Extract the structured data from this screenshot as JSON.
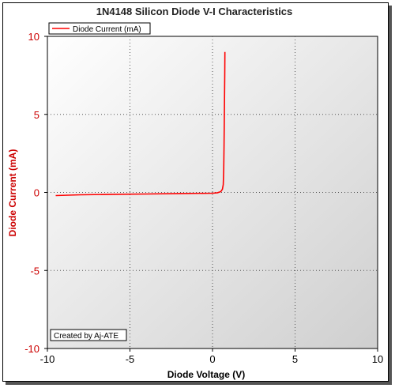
{
  "chart_data": {
    "type": "line",
    "title": "1N4148 Silicon Diode V-I Characteristics",
    "xlabel": "Diode Voltage (V)",
    "ylabel": "Diode Current (mA)",
    "xlim": [
      -10,
      10
    ],
    "ylim": [
      -10,
      10
    ],
    "xticks": [
      "-10",
      "-5",
      "0",
      "5",
      "10"
    ],
    "yticks": [
      "10",
      "5",
      "0",
      "-5",
      "-10"
    ],
    "grid": true,
    "legend_position": "top-left",
    "annotation": "Created by Aj-ATE",
    "series": [
      {
        "name": "Diode Current (mA)",
        "color": "#ff0000",
        "x": [
          -9.5,
          -8,
          -6,
          -4,
          -2,
          0,
          0.3,
          0.5,
          0.6,
          0.65,
          0.68,
          0.7,
          0.72,
          0.74,
          0.75
        ],
        "y": [
          -0.2,
          -0.15,
          -0.12,
          -0.1,
          -0.07,
          -0.05,
          -0.02,
          0.05,
          0.2,
          0.5,
          1.5,
          3,
          5,
          7.5,
          9
        ]
      }
    ]
  }
}
